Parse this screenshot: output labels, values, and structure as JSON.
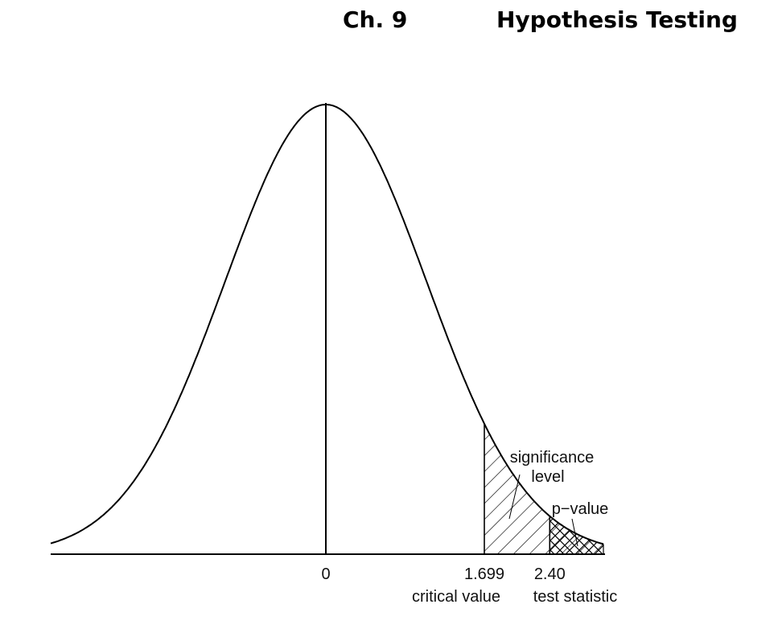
{
  "header": {
    "chapter": "Ch. 9",
    "topic": "Hypothesis Testing"
  },
  "chart_data": {
    "type": "area",
    "distribution": "bell-shaped density curve (t distribution)",
    "x_ticks": [
      {
        "value": 0,
        "label": "0"
      },
      {
        "value": 1.699,
        "label": "1.699",
        "caption": "critical value"
      },
      {
        "value": 2.4,
        "label": "2.40",
        "caption": "test statistic"
      }
    ],
    "shaded_regions": [
      {
        "name": "significance level",
        "from": 1.699,
        "to": "right tail",
        "pattern": "diagonal hatch"
      },
      {
        "name": "p−value",
        "from": 2.4,
        "to": "right tail",
        "pattern": "cross hatch"
      }
    ],
    "annotations": [
      {
        "text_lines": [
          "significance",
          "level"
        ],
        "points_to": "significance level"
      },
      {
        "text_lines": [
          "p−value"
        ],
        "points_to": "p−value"
      }
    ],
    "grid": false,
    "legend": "none"
  }
}
